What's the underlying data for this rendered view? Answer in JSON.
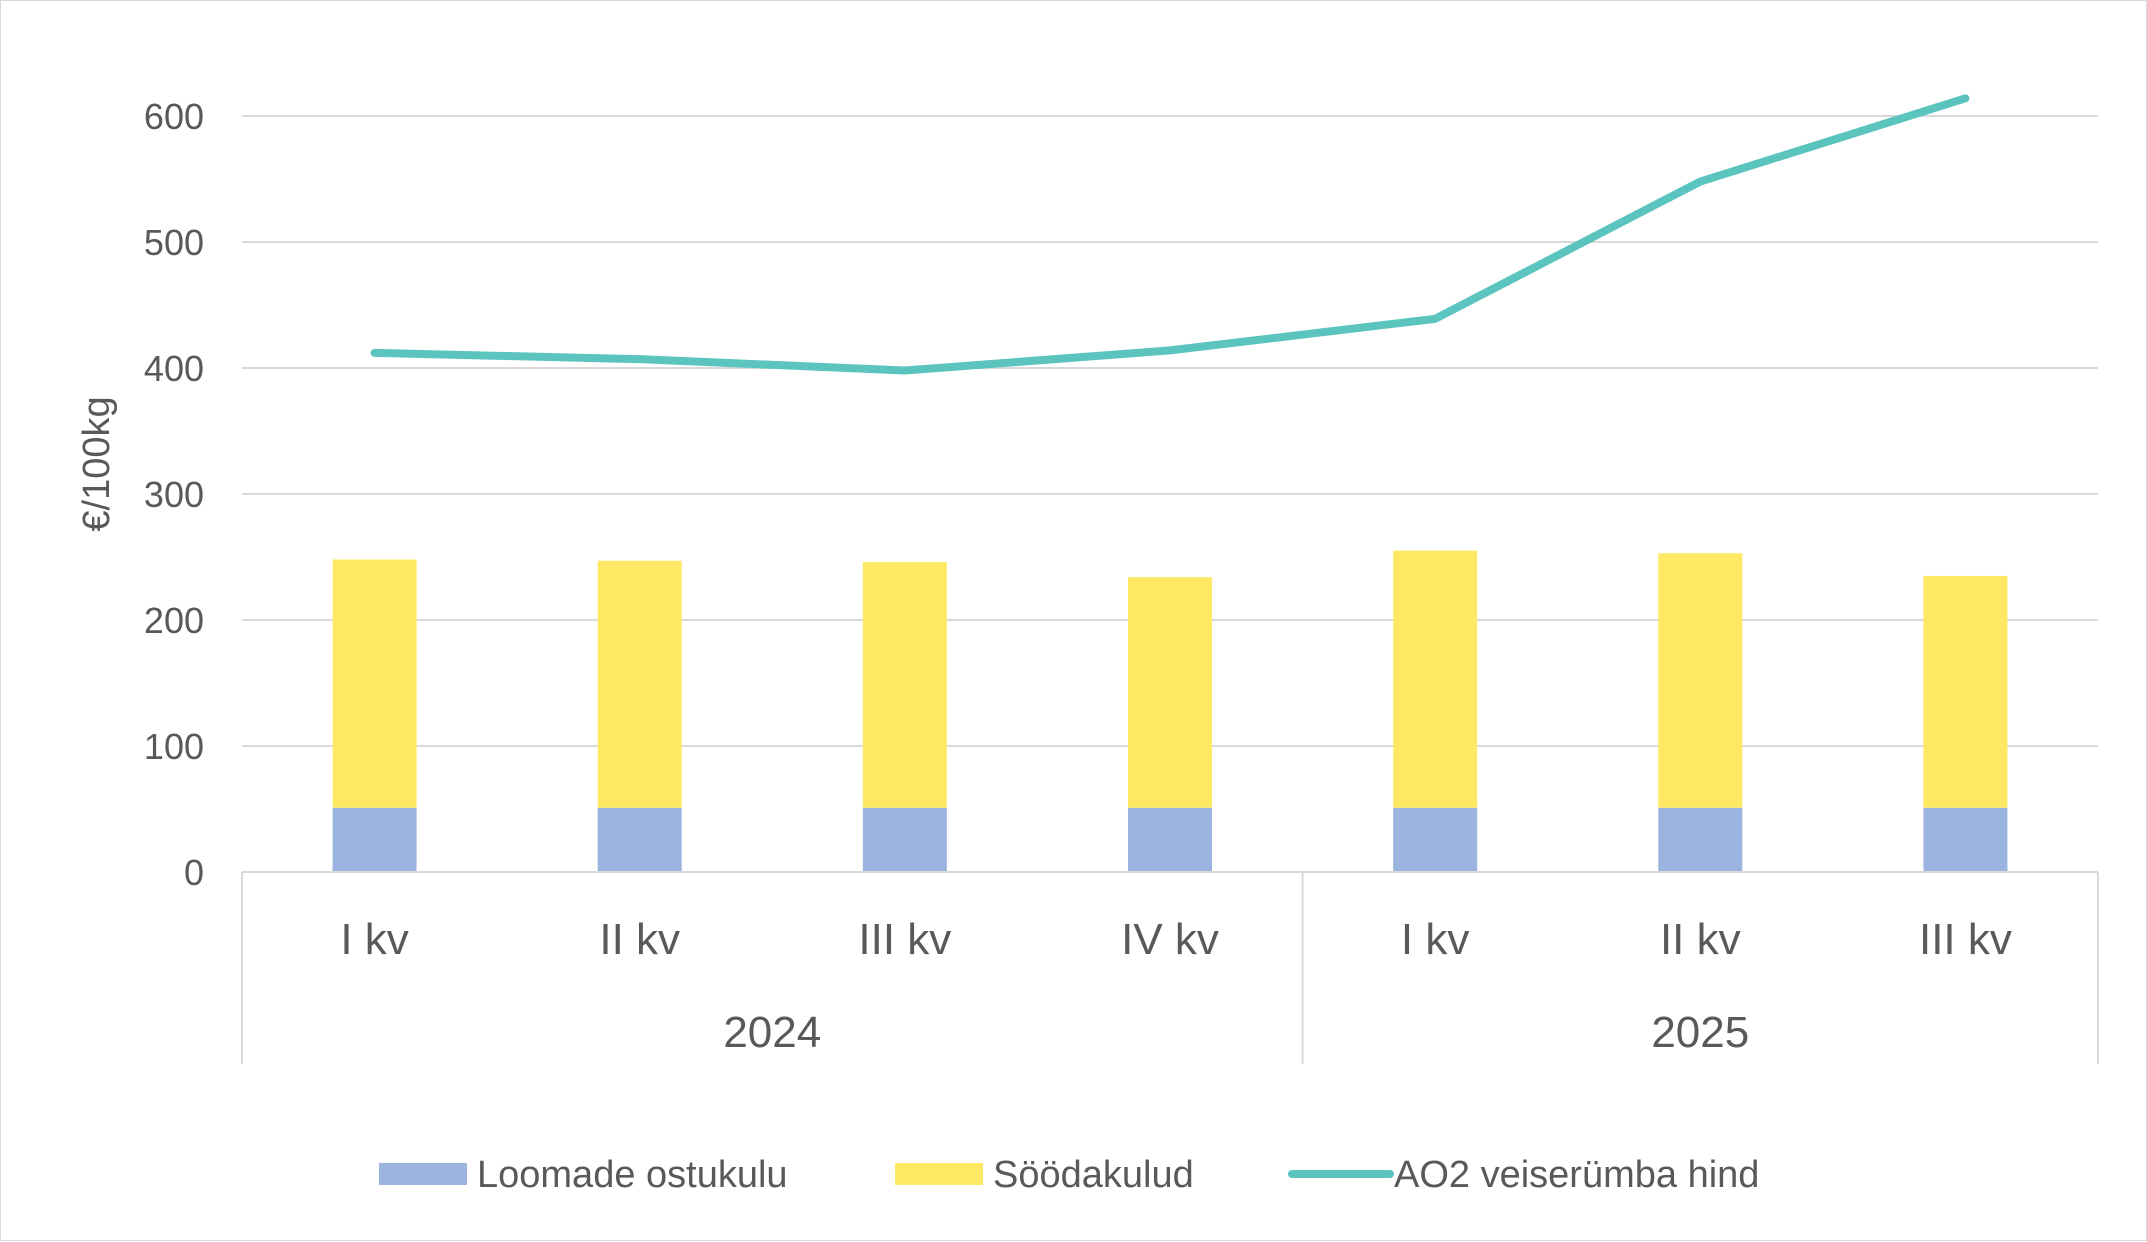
{
  "chart_data": {
    "type": "bar",
    "ylabel": "€/100kg",
    "ylim": [
      0,
      650
    ],
    "yticks": [
      0,
      100,
      200,
      300,
      400,
      500,
      600
    ],
    "grid": true,
    "legend_position": "bottom",
    "categories": [
      "I kv",
      "II kv",
      "III kv",
      "IV kv",
      "I kv",
      "II kv",
      "III kv"
    ],
    "category_groups": [
      {
        "label": "2024",
        "count": 4
      },
      {
        "label": "2025",
        "count": 3
      }
    ],
    "series": [
      {
        "name": "Loomade ostukulu",
        "type": "bar",
        "stacked": true,
        "color": "#9bb5e0",
        "values": [
          51,
          51,
          51,
          51,
          51,
          51,
          51
        ]
      },
      {
        "name": "Söödakulud",
        "type": "bar",
        "stacked": true,
        "color": "#ffe964",
        "values": [
          197,
          196,
          195,
          183,
          204,
          202,
          184
        ]
      },
      {
        "name": "AO2 veiserümba hind",
        "type": "line",
        "color": "#5bc4bf",
        "values": [
          412,
          407,
          398,
          414,
          439,
          548,
          614
        ]
      }
    ]
  }
}
